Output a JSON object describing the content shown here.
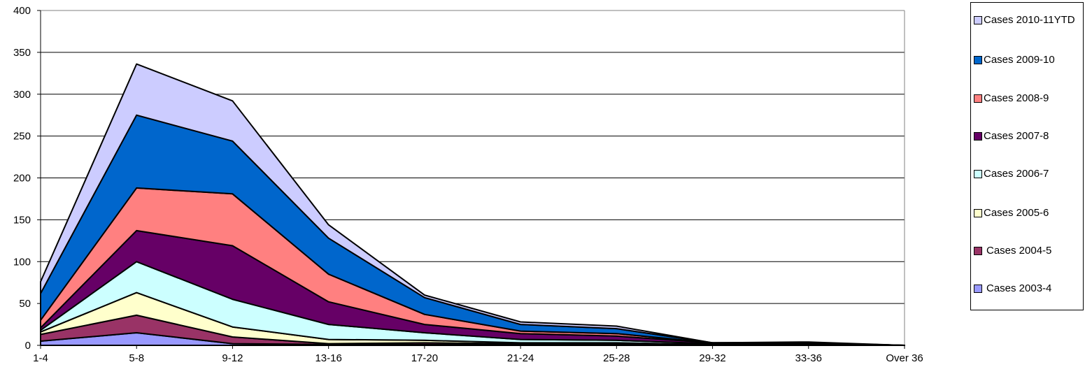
{
  "chart_data": {
    "type": "area",
    "stacked": true,
    "categories": [
      "1-4",
      "5-8",
      "9-12",
      "13-16",
      "17-20",
      "21-24",
      "25-28",
      "29-32",
      "33-36",
      "Over 36"
    ],
    "ylim": [
      0,
      400
    ],
    "yticks": [
      0,
      50,
      100,
      150,
      200,
      250,
      300,
      350,
      400
    ],
    "grid": true,
    "legend_position": "right",
    "series": [
      {
        "name": "Cases 2003-4",
        "color": "#9999ff",
        "values": [
          5,
          15,
          2,
          1,
          1,
          1,
          1,
          0,
          0,
          0
        ]
      },
      {
        "name": "Cases 2004-5",
        "color": "#993366",
        "values": [
          8,
          21,
          8,
          1,
          2,
          1,
          1,
          0,
          0,
          0
        ]
      },
      {
        "name": "Cases 2005-6",
        "color": "#ffffcc",
        "values": [
          3,
          27,
          12,
          5,
          3,
          1,
          1,
          1,
          1,
          0
        ]
      },
      {
        "name": "Cases 2006-7",
        "color": "#ccffff",
        "values": [
          2,
          37,
          33,
          18,
          9,
          4,
          3,
          1,
          1,
          0
        ]
      },
      {
        "name": "Cases 2007-8",
        "color": "#660066",
        "values": [
          3,
          37,
          64,
          27,
          10,
          7,
          5,
          1,
          1,
          0
        ]
      },
      {
        "name": "Cases 2008-9",
        "color": "#ff8080",
        "values": [
          9,
          51,
          62,
          33,
          12,
          3,
          3,
          0,
          0,
          0
        ]
      },
      {
        "name": "Cases 2009-10",
        "color": "#0066cc",
        "values": [
          32,
          87,
          63,
          43,
          20,
          8,
          6,
          0,
          0,
          0
        ]
      },
      {
        "name": "Cases 2010-11YTD",
        "color": "#ccccff",
        "values": [
          14,
          61,
          48,
          16,
          3,
          3,
          3,
          0,
          1,
          0
        ]
      }
    ]
  },
  "legend": {
    "items": [
      {
        "label": "Cases 2010-11YTD",
        "color": "#ccccff"
      },
      {
        "label": "Cases 2009-10",
        "color": "#0066cc"
      },
      {
        "label": "Cases 2008-9",
        "color": "#ff8080"
      },
      {
        "label": "Cases 2007-8",
        "color": "#660066"
      },
      {
        "label": "Cases 2006-7",
        "color": "#ccffff"
      },
      {
        "label": "Cases 2005-6",
        "color": "#ffffcc"
      },
      {
        "label": "Cases 2004-5",
        "color": "#993366"
      },
      {
        "label": "Cases 2003-4",
        "color": "#9999ff"
      }
    ]
  }
}
